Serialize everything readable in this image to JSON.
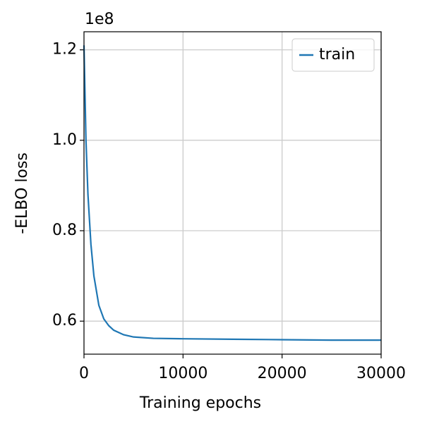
{
  "chart_data": {
    "type": "line",
    "x_label": "Training epochs",
    "y_label": "-ELBO loss",
    "y_offset_label": "1e8",
    "x": [
      0,
      200,
      400,
      700,
      1000,
      1500,
      2000,
      2500,
      3000,
      4000,
      5000,
      7000,
      10000,
      15000,
      20000,
      25000,
      30000
    ],
    "series": [
      {
        "name": "train",
        "color": "#1f77b4",
        "values": [
          1.21,
          1.0,
          0.88,
          0.77,
          0.7,
          0.635,
          0.605,
          0.59,
          0.58,
          0.57,
          0.565,
          0.562,
          0.561,
          0.56,
          0.559,
          0.558,
          0.558
        ]
      }
    ],
    "xlim": [
      0,
      30000
    ],
    "xticks": [
      0,
      10000,
      20000,
      30000
    ],
    "ylim": [
      0.527,
      1.24
    ],
    "yticks": [
      {
        "value": 0.6,
        "label": "0.6"
      },
      {
        "value": 0.8,
        "label": "0.8"
      },
      {
        "value": 1,
        "label": "1.0"
      },
      {
        "value": 1.2,
        "label": "1.2"
      }
    ],
    "grid": true,
    "legend": "upper right"
  }
}
